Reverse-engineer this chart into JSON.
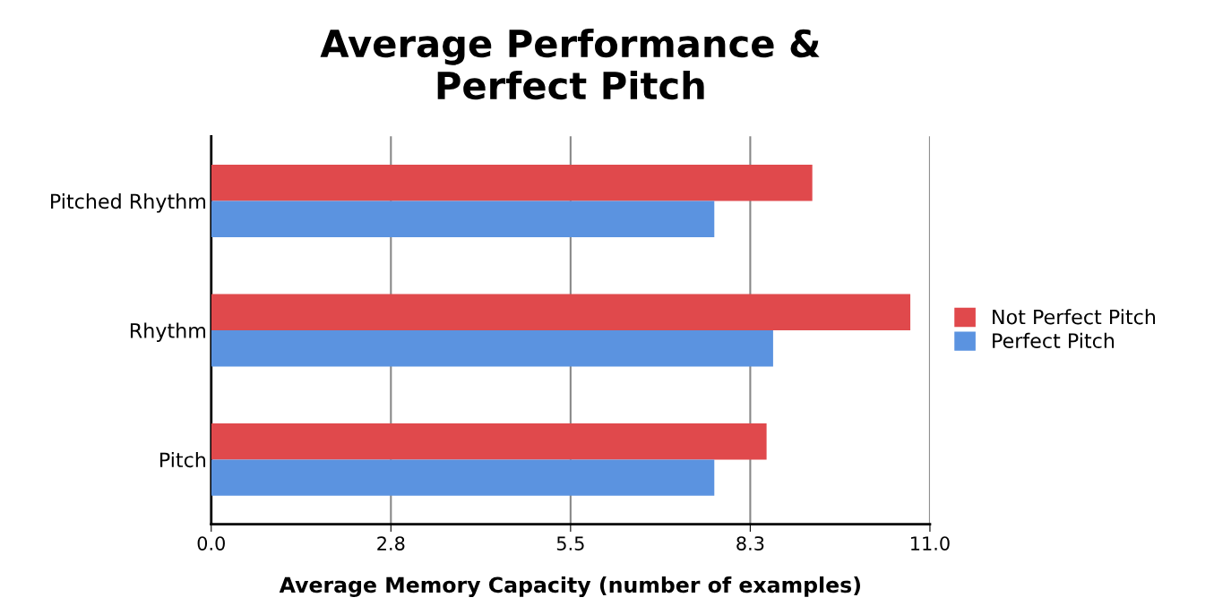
{
  "chart_data": {
    "type": "bar",
    "orientation": "horizontal",
    "title": "Average Performance &\nPerfect Pitch",
    "xlabel": "Average Memory Capacity (number of examples)",
    "categories": [
      "Pitched Rhythm",
      "Rhythm",
      "Pitch"
    ],
    "series": [
      {
        "name": "Not Perfect Pitch",
        "color": "#e0494c",
        "values": [
          9.2,
          10.7,
          8.5
        ]
      },
      {
        "name": "Perfect Pitch",
        "color": "#5b93e0",
        "values": [
          7.7,
          8.6,
          7.7
        ]
      }
    ],
    "xlim": [
      0,
      11
    ],
    "xticks": [
      {
        "value": 0,
        "label": "0.0"
      },
      {
        "value": 2.75,
        "label": "2.8"
      },
      {
        "value": 5.5,
        "label": "5.5"
      },
      {
        "value": 8.25,
        "label": "8.3"
      },
      {
        "value": 11,
        "label": "11.0"
      }
    ],
    "grid": "x",
    "legend": "right"
  }
}
